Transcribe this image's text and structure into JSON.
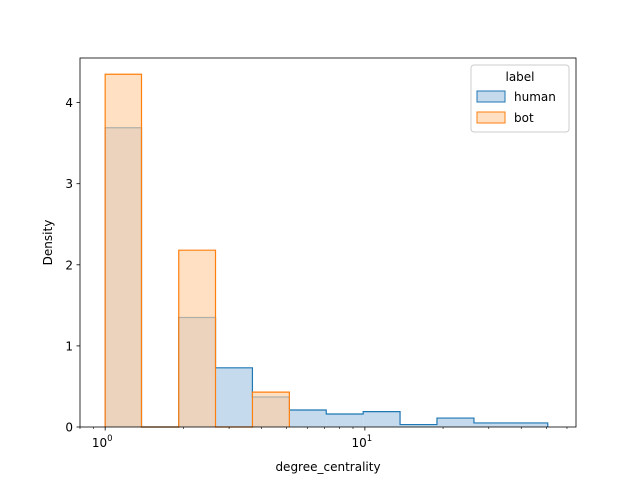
{
  "chart_data": {
    "type": "histogram",
    "title": "",
    "xlabel": "degree_centrality",
    "ylabel": "Density",
    "x_scale": "log",
    "xlim": [
      0.8,
      65
    ],
    "ylim": [
      0,
      4.55
    ],
    "y_ticks": [
      0,
      1,
      2,
      3,
      4
    ],
    "x_ticks": [
      {
        "value": 1,
        "base": "10",
        "exp": "0"
      },
      {
        "value": 10,
        "base": "10",
        "exp": "1"
      }
    ],
    "grid": false,
    "legend": {
      "title": "label",
      "placement": "top-right"
    },
    "series": [
      {
        "name": "human",
        "color": "#1f77b4",
        "fill": "#a6c8e4",
        "bins": [
          {
            "x0": 1.0,
            "x1": 1.38,
            "value": 3.69
          },
          {
            "x0": 1.38,
            "x1": 1.92,
            "value": 0
          },
          {
            "x0": 1.92,
            "x1": 2.66,
            "value": 1.35
          },
          {
            "x0": 2.66,
            "x1": 3.69,
            "value": 0.73
          },
          {
            "x0": 3.69,
            "x1": 5.12,
            "value": 0.37
          },
          {
            "x0": 5.12,
            "x1": 7.1,
            "value": 0.21
          },
          {
            "x0": 7.1,
            "x1": 9.85,
            "value": 0.16
          },
          {
            "x0": 9.85,
            "x1": 13.66,
            "value": 0.19
          },
          {
            "x0": 13.66,
            "x1": 18.95,
            "value": 0.03
          },
          {
            "x0": 18.95,
            "x1": 26.3,
            "value": 0.11
          },
          {
            "x0": 26.3,
            "x1": 36.5,
            "value": 0.05
          },
          {
            "x0": 36.5,
            "x1": 50.6,
            "value": 0.05
          }
        ]
      },
      {
        "name": "bot",
        "color": "#ff7f0e",
        "fill": "#ffcfa3",
        "bins": [
          {
            "x0": 1.0,
            "x1": 1.38,
            "value": 4.35
          },
          {
            "x0": 1.38,
            "x1": 1.92,
            "value": 0
          },
          {
            "x0": 1.92,
            "x1": 2.66,
            "value": 2.18
          },
          {
            "x0": 2.66,
            "x1": 3.69,
            "value": 0
          },
          {
            "x0": 3.69,
            "x1": 5.12,
            "value": 0.43
          }
        ]
      }
    ]
  }
}
